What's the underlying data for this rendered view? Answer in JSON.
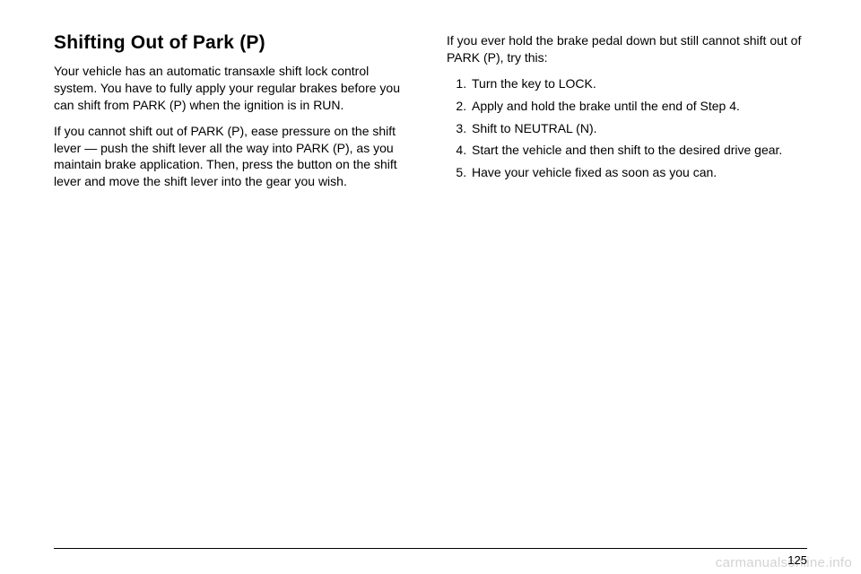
{
  "left": {
    "heading": "Shifting Out of Park (P)",
    "para1": "Your vehicle has an automatic transaxle shift lock control system. You have to fully apply your regular brakes before you can shift from PARK (P) when the ignition is in RUN.",
    "para2": "If you cannot shift out of PARK (P), ease pressure on the shift lever — push the shift lever all the way into PARK (P), as you maintain brake application. Then, press the button on the shift lever and move the shift lever into the gear you wish."
  },
  "right": {
    "intro": "If you ever hold the brake pedal down but still cannot shift out of PARK (P), try this:",
    "steps": [
      "Turn the key to LOCK.",
      "Apply and hold the brake until the end of Step 4.",
      "Shift to NEUTRAL (N).",
      "Start the vehicle and then shift to the desired drive gear.",
      "Have your vehicle fixed as soon as you can."
    ]
  },
  "footer": {
    "page_number": "125",
    "watermark": "carmanualsonline.info"
  },
  "style": {
    "background": "#ffffff",
    "text_color": "#000000",
    "heading_fontsize": 21,
    "body_fontsize": 14,
    "watermark_color": "rgba(0,0,0,0.18)"
  }
}
